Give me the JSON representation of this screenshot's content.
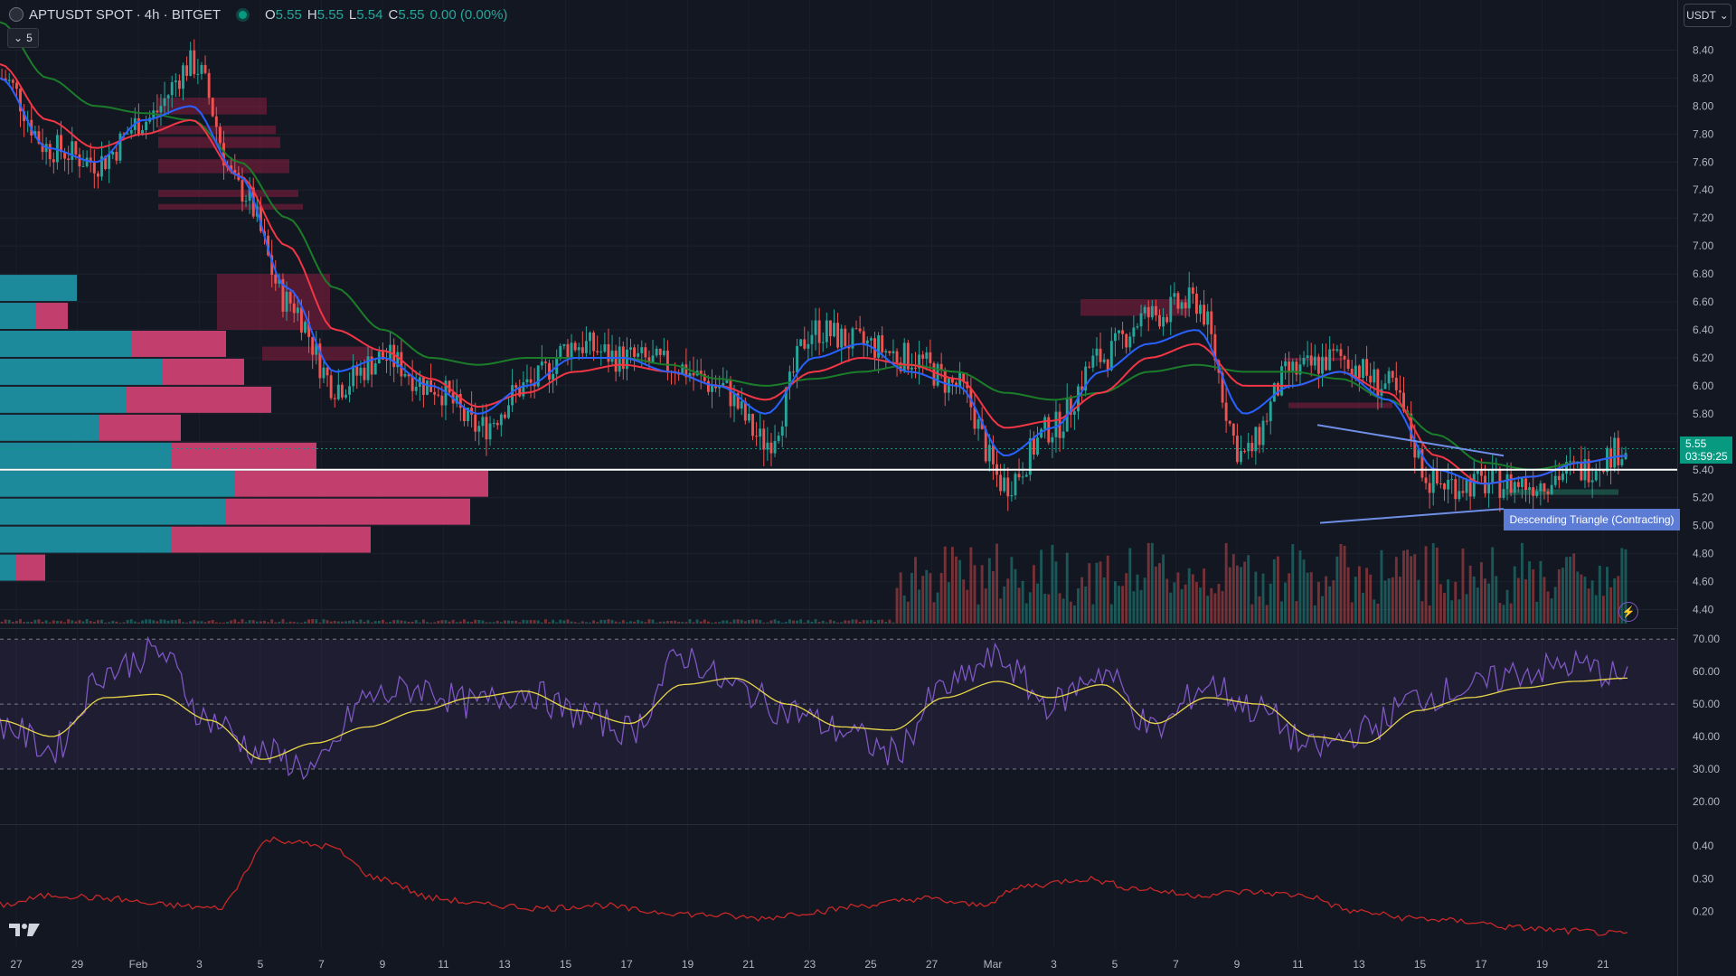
{
  "header": {
    "symbol": "APTUSDT SPOT · 4h · BITGET",
    "o_label": "O",
    "o_value": "5.55",
    "h_label": "H",
    "h_value": "5.55",
    "l_label": "L",
    "l_value": "5.54",
    "c_label": "C",
    "c_value": "5.55",
    "change": "0.00 (0.00%)"
  },
  "indicator_toggle": {
    "count": "5"
  },
  "currency_selector": {
    "value": "USDT"
  },
  "last_price": {
    "price": "5.55",
    "countdown": "03:59:25"
  },
  "pattern_label": "Descending Triangle (Contracting)",
  "colors": {
    "background": "#131722",
    "up": "#26a69a",
    "down": "#ef5350",
    "ema_fast": "#2962ff",
    "ema_mid": "#f23645",
    "ema_slow": "#1b7d2a",
    "rsi": "#7e57c2",
    "rsi_ma": "#e9d648",
    "atr": "#c62828"
  },
  "price_axis": {
    "min": 4.3,
    "max": 8.5,
    "ticks": [
      "8.40",
      "8.20",
      "8.00",
      "7.80",
      "7.60",
      "7.40",
      "7.20",
      "7.00",
      "6.80",
      "6.60",
      "6.40",
      "6.20",
      "6.00",
      "5.80",
      "5.60",
      "5.40",
      "5.20",
      "5.00",
      "4.80",
      "4.60",
      "4.40"
    ]
  },
  "rsi_axis": {
    "min": 15,
    "max": 72,
    "ticks": [
      "70.00",
      "60.00",
      "50.00",
      "40.00",
      "30.00",
      "20.00"
    ],
    "bands": [
      70,
      50,
      30
    ]
  },
  "atr_axis": {
    "min": 0.1,
    "max": 0.45,
    "ticks": [
      "0.40",
      "0.30",
      "0.20"
    ]
  },
  "time_axis": {
    "labels": [
      "27",
      "29",
      "Feb",
      "3",
      "5",
      "7",
      "9",
      "11",
      "13",
      "15",
      "17",
      "19",
      "21",
      "23",
      "25",
      "27",
      "Mar",
      "3",
      "5",
      "7",
      "9",
      "11",
      "13",
      "15",
      "17",
      "19",
      "21"
    ]
  },
  "chart_data": {
    "type": "line",
    "series_knots": {
      "close": [
        8.2,
        7.7,
        7.6,
        7.9,
        8.3,
        7.4,
        6.6,
        6.0,
        6.2,
        6.0,
        5.7,
        6.0,
        6.3,
        6.2,
        6.15,
        6.0,
        5.6,
        6.4,
        6.3,
        6.2,
        6.0,
        5.3,
        5.7,
        6.2,
        6.5,
        6.6,
        5.5,
        6.1,
        6.2,
        6.0,
        5.3,
        5.3,
        5.3,
        5.4,
        5.55
      ],
      "ema_fast": [
        8.2,
        7.7,
        7.6,
        7.9,
        8.0,
        7.5,
        6.7,
        6.1,
        6.2,
        6.0,
        5.8,
        6.0,
        6.2,
        6.2,
        6.1,
        6.0,
        5.8,
        6.2,
        6.3,
        6.1,
        6.0,
        5.5,
        5.7,
        6.1,
        6.3,
        6.4,
        5.8,
        6.0,
        6.1,
        5.9,
        5.4,
        5.3,
        5.35,
        5.45,
        5.5
      ],
      "ema_mid": [
        8.3,
        7.9,
        7.7,
        7.8,
        7.9,
        7.5,
        7.0,
        6.4,
        6.25,
        6.05,
        5.85,
        5.95,
        6.1,
        6.15,
        6.1,
        6.0,
        5.9,
        6.1,
        6.2,
        6.15,
        6.05,
        5.7,
        5.75,
        5.95,
        6.2,
        6.3,
        6.0,
        6.0,
        6.1,
        5.95,
        5.5,
        5.3,
        5.35,
        5.45,
        5.5
      ],
      "ema_slow": [
        8.6,
        8.2,
        8.0,
        7.95,
        7.9,
        7.6,
        7.2,
        6.7,
        6.4,
        6.2,
        6.15,
        6.2,
        6.2,
        6.2,
        6.15,
        6.05,
        6.0,
        6.05,
        6.1,
        6.15,
        6.1,
        5.95,
        5.9,
        5.95,
        6.1,
        6.15,
        6.1,
        6.1,
        6.05,
        5.9,
        5.65,
        5.45,
        5.4,
        5.45,
        5.5
      ],
      "rsi": [
        44,
        36,
        60,
        66,
        45,
        35,
        30,
        52,
        55,
        50,
        54,
        47,
        42,
        65,
        55,
        48,
        42,
        35,
        55,
        64,
        50,
        60,
        42,
        56,
        48,
        36,
        42,
        52,
        55,
        60,
        62,
        58
      ],
      "rsi_ma": [
        45,
        40,
        52,
        53,
        45,
        33,
        38,
        43,
        48,
        52,
        54,
        48,
        44,
        56,
        58,
        50,
        43,
        42,
        52,
        57,
        52,
        56,
        44,
        52,
        50,
        40,
        38,
        48,
        52,
        55,
        57,
        58
      ],
      "atr": [
        0.22,
        0.25,
        0.24,
        0.22,
        0.21,
        0.42,
        0.4,
        0.3,
        0.24,
        0.22,
        0.21,
        0.22,
        0.2,
        0.19,
        0.18,
        0.2,
        0.22,
        0.24,
        0.22,
        0.28,
        0.3,
        0.27,
        0.25,
        0.26,
        0.25,
        0.2,
        0.18,
        0.17,
        0.15,
        0.14,
        0.13
      ]
    },
    "reference_price": 5.4,
    "dotted_price": 5.55
  }
}
